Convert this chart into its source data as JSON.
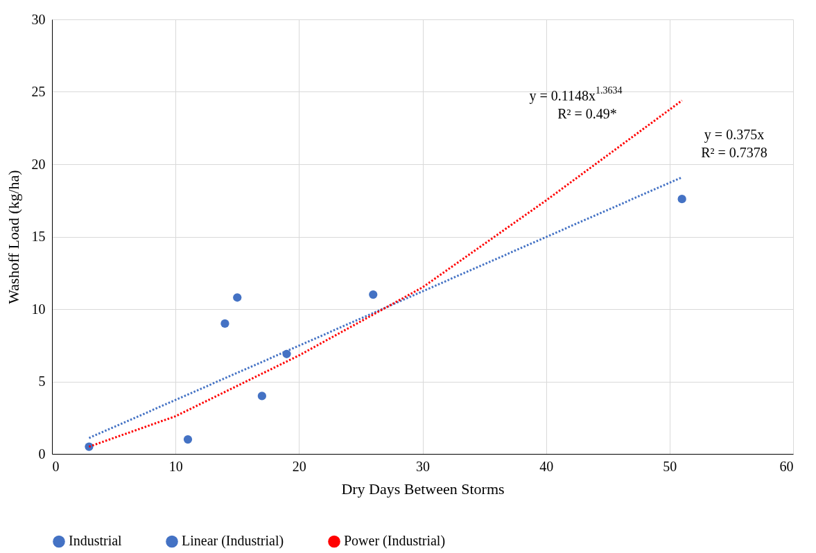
{
  "chart_data": {
    "type": "scatter",
    "xlabel": "Dry Days Between Storms",
    "ylabel": "Washoff Load (kg/ha)",
    "xlim": [
      0,
      60
    ],
    "xticks": [
      0,
      10,
      20,
      30,
      40,
      50,
      60
    ],
    "ylim": [
      0,
      30
    ],
    "yticks": [
      0,
      5,
      10,
      15,
      20,
      25,
      30
    ],
    "grid": true,
    "legend": "bottom",
    "series": [
      {
        "name": "Industrial",
        "marker": "circle",
        "color": "#4472c4",
        "x": [
          3,
          11,
          14,
          15,
          17,
          19,
          26,
          51
        ],
        "values": [
          0.5,
          1.0,
          9.0,
          10.8,
          4.0,
          6.9,
          11.0,
          17.6
        ]
      },
      {
        "name": "Linear (Industrial)",
        "type": "line",
        "line_style": "dotted",
        "color": "#4472c4",
        "x": [
          3,
          51
        ],
        "values": [
          1.1,
          19.1
        ]
      },
      {
        "name": "Power (Industrial)",
        "type": "line",
        "line_style": "dotted",
        "color": "#ff0000",
        "x": [
          3,
          10,
          20,
          30,
          40,
          51
        ],
        "values": [
          0.5,
          2.6,
          6.8,
          11.5,
          17.5,
          24.4
        ]
      }
    ],
    "annotations": [
      "y = 0.1148x$^{1.3634}$",
      "R² = 0.49*",
      "y = 0.375x",
      "R² = 0.7378"
    ]
  }
}
